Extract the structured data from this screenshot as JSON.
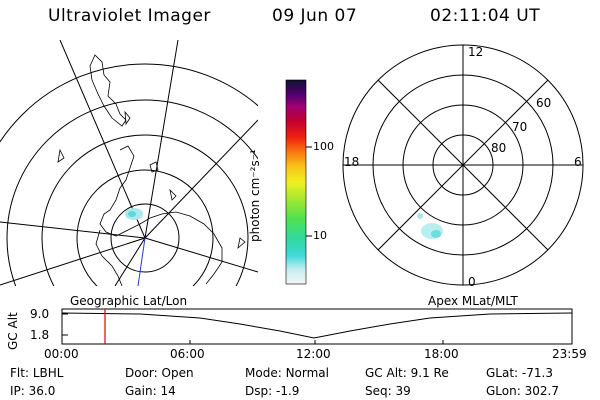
{
  "header": {
    "title": "Ultraviolet Imager",
    "date": "09 Jun 07",
    "time": "02:11:04 UT"
  },
  "colorbar": {
    "label": "photon cm⁻²s⁻¹",
    "ticks": [
      "100",
      "10"
    ]
  },
  "polar_plot": {
    "mlt_labels": {
      "top": "12",
      "left": "18",
      "right": "6",
      "bottom": "0"
    },
    "lat_labels": [
      "60",
      "70",
      "80"
    ]
  },
  "timeline": {
    "label_left": "Geographic Lat/Lon",
    "label_right": "Apex MLat/MLT",
    "axis_title": "GC Alt",
    "y_ticks": [
      "9.0",
      "1.8"
    ],
    "x_ticks": [
      "00:00",
      "06:00",
      "12:00",
      "18:00",
      "23:59"
    ],
    "marker_color": "#e00000"
  },
  "info": {
    "row1": [
      {
        "label": "Flt:",
        "value": "LBHL"
      },
      {
        "label": "Door:",
        "value": "Open"
      },
      {
        "label": "Mode:",
        "value": "Normal"
      },
      {
        "label": "GC Alt:",
        "value": "9.1 Re"
      },
      {
        "label": "GLat:",
        "value": "-71.3"
      }
    ],
    "row2": [
      {
        "label": "IP:",
        "value": "36.0"
      },
      {
        "label": "Gain:",
        "value": "14"
      },
      {
        "label": "Dsp:",
        "value": "-1.9"
      },
      {
        "label": "Seq:",
        "value": "39"
      },
      {
        "label": "GLon:",
        "value": "302.7"
      }
    ]
  }
}
